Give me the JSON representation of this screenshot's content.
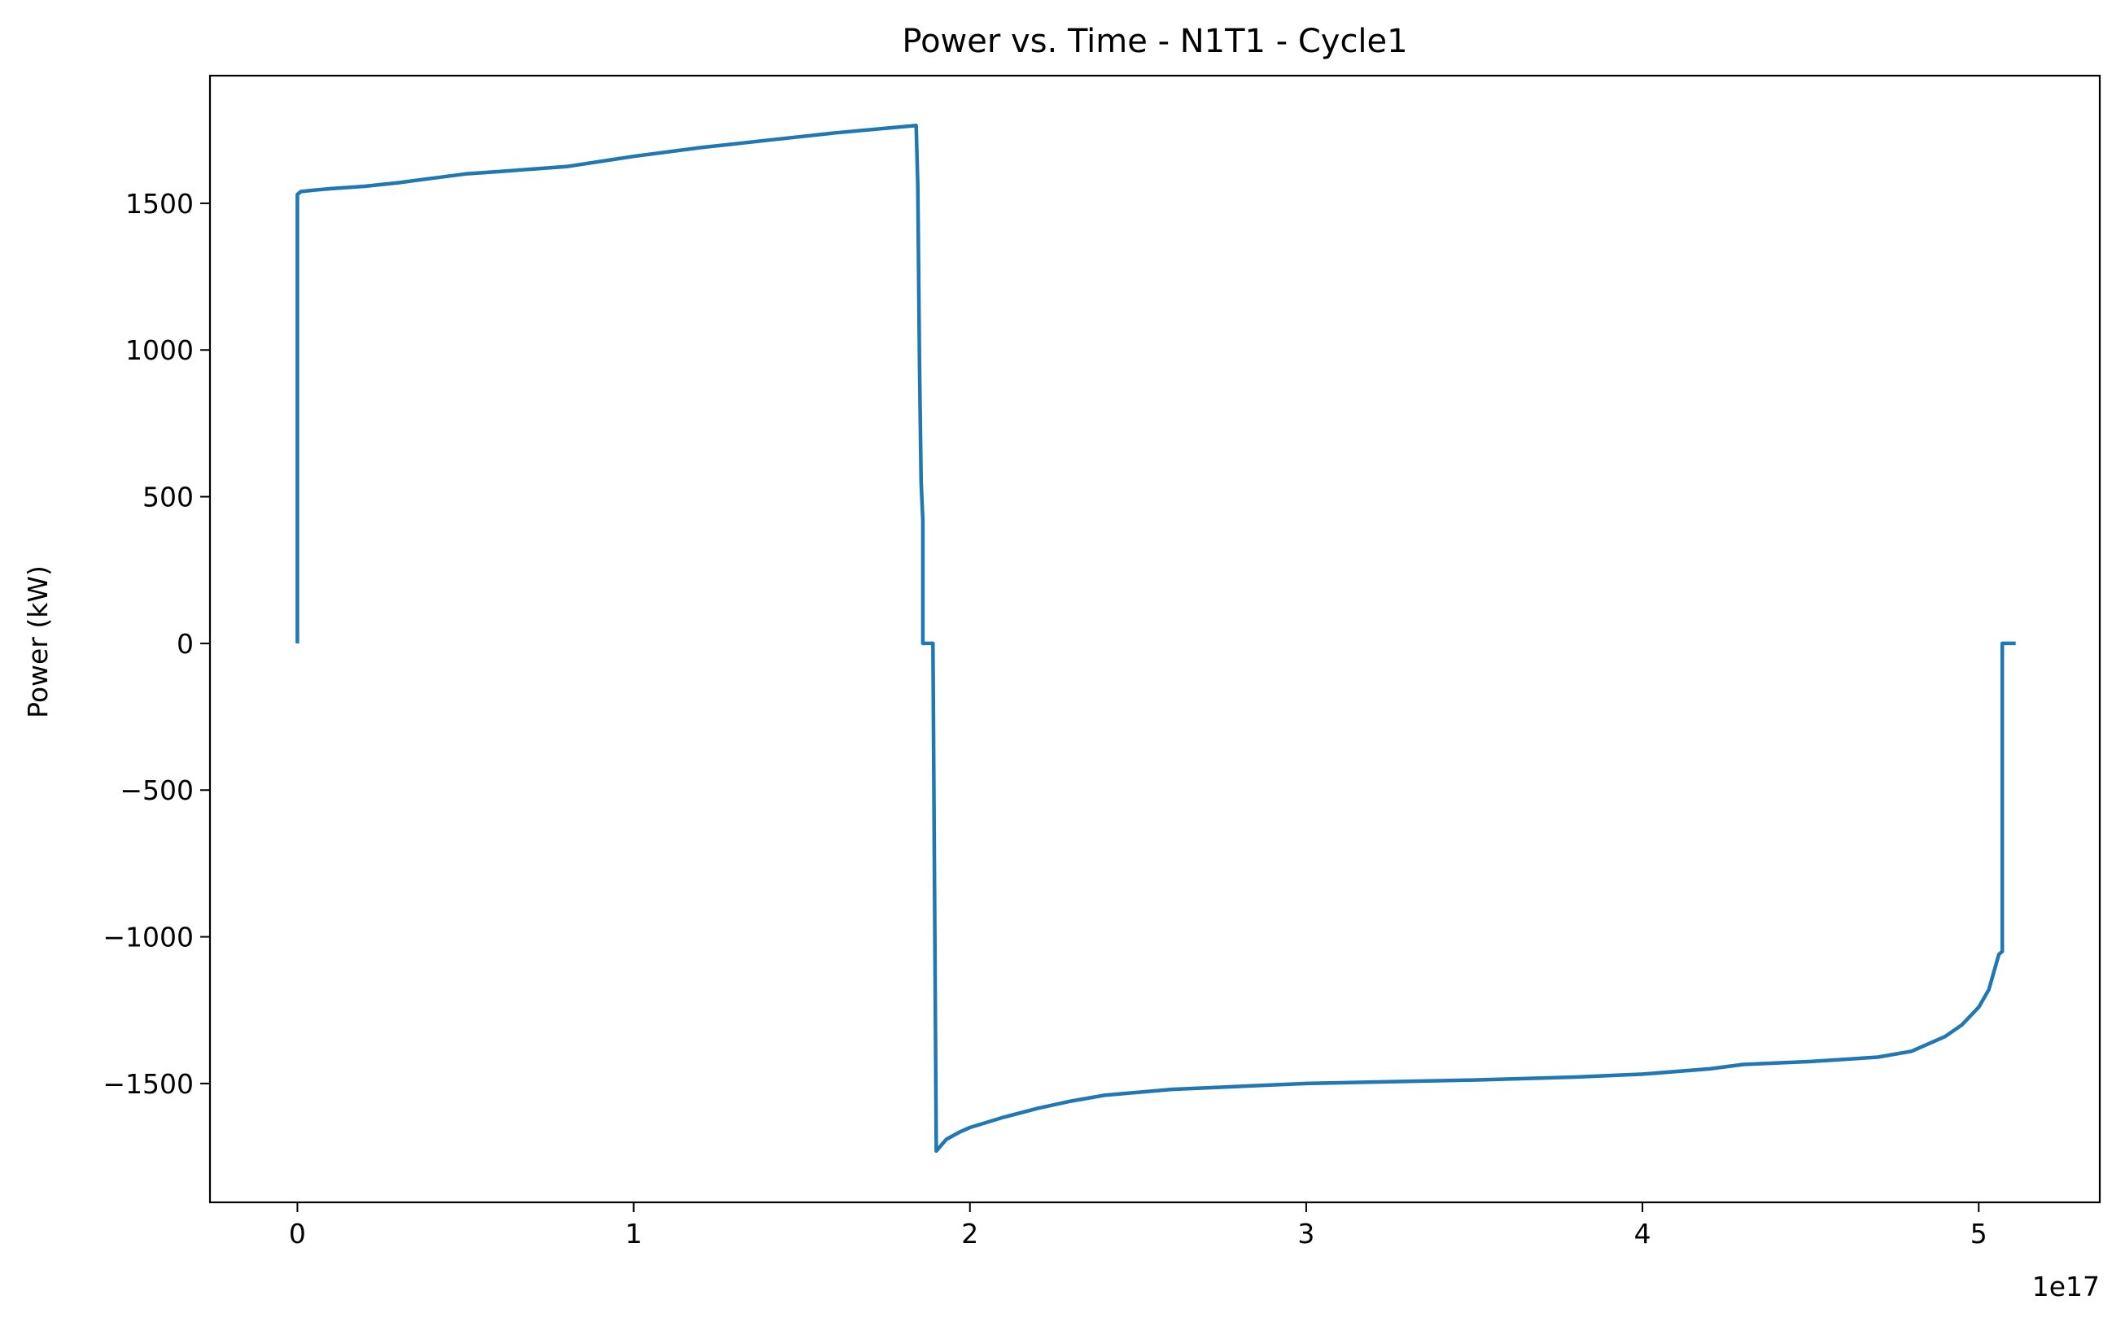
{
  "chart_data": {
    "type": "line",
    "title": "Power vs. Time - N1T1 - Cycle1",
    "xlabel": "",
    "ylabel": "Power (kW)",
    "x_offset_label": "1e17",
    "x_tick_values": [
      0,
      1,
      2,
      3,
      4,
      5
    ],
    "x_tick_labels": [
      "0",
      "1",
      "2",
      "3",
      "4",
      "5"
    ],
    "y_tick_values": [
      -1500,
      -1000,
      -500,
      0,
      500,
      1000,
      1500
    ],
    "y_tick_labels": [
      "−1500",
      "−1000",
      "−500",
      "0",
      "500",
      "1000",
      "1500"
    ],
    "xlim": [
      -0.26,
      5.36
    ],
    "ylim": [
      -1905,
      1935
    ],
    "grid": false,
    "x_units": "1e17",
    "series": [
      {
        "color": "#1f77b4",
        "x": [
          0.0,
          0.0,
          0.01,
          0.05,
          0.1,
          0.2,
          0.3,
          0.4,
          0.5,
          0.6,
          0.8,
          1.0,
          1.2,
          1.4,
          1.6,
          1.84,
          1.845,
          1.85,
          1.855,
          1.86,
          1.86,
          1.86,
          1.88,
          1.88,
          1.89,
          1.9,
          1.93,
          1.97,
          2.0,
          2.1,
          2.2,
          2.3,
          2.4,
          2.6,
          2.8,
          3.0,
          3.2,
          3.5,
          3.8,
          4.0,
          4.2,
          4.3,
          4.5,
          4.7,
          4.8,
          4.9,
          4.95,
          5.0,
          5.03,
          5.06,
          5.07,
          5.07,
          5.075,
          5.11
        ],
        "y": [
          0,
          1530,
          1540,
          1545,
          1550,
          1558,
          1570,
          1585,
          1600,
          1608,
          1625,
          1660,
          1690,
          1715,
          1740,
          1765,
          1560,
          950,
          550,
          420,
          0,
          0,
          0,
          0,
          0,
          -1730,
          -1690,
          -1665,
          -1650,
          -1615,
          -1585,
          -1560,
          -1540,
          -1520,
          -1510,
          -1500,
          -1495,
          -1488,
          -1478,
          -1468,
          -1450,
          -1435,
          -1425,
          -1410,
          -1390,
          -1340,
          -1300,
          -1240,
          -1180,
          -1060,
          -1050,
          0,
          0,
          0
        ]
      }
    ]
  }
}
